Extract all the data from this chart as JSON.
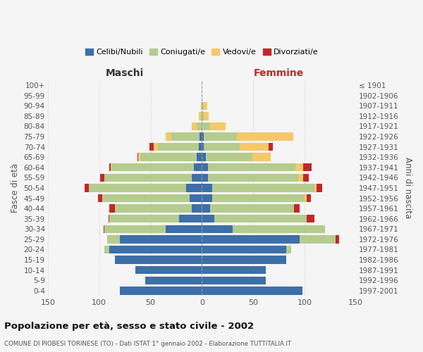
{
  "age_groups": [
    "0-4",
    "5-9",
    "10-14",
    "15-19",
    "20-24",
    "25-29",
    "30-34",
    "35-39",
    "40-44",
    "45-49",
    "50-54",
    "55-59",
    "60-64",
    "65-69",
    "70-74",
    "75-79",
    "80-84",
    "85-89",
    "90-94",
    "95-99",
    "100+"
  ],
  "birth_years": [
    "1997-2001",
    "1992-1996",
    "1987-1991",
    "1982-1986",
    "1977-1981",
    "1972-1976",
    "1967-1971",
    "1962-1966",
    "1957-1961",
    "1952-1956",
    "1947-1951",
    "1942-1946",
    "1937-1941",
    "1932-1936",
    "1927-1931",
    "1922-1926",
    "1917-1921",
    "1912-1916",
    "1907-1911",
    "1902-1906",
    "≤ 1901"
  ],
  "colors": {
    "celibi": "#3d6fa8",
    "coniugati": "#b5cc8e",
    "vedovi": "#f5c96a",
    "divorziati": "#c0282a"
  },
  "maschi": {
    "celibi": [
      80,
      55,
      65,
      85,
      90,
      80,
      35,
      22,
      10,
      12,
      15,
      10,
      8,
      5,
      3,
      2,
      0,
      0,
      0,
      0,
      0
    ],
    "coniugati": [
      0,
      0,
      0,
      0,
      5,
      12,
      60,
      68,
      75,
      85,
      95,
      85,
      80,
      55,
      40,
      28,
      5,
      1,
      0,
      0,
      0
    ],
    "vedovi": [
      0,
      0,
      0,
      0,
      0,
      0,
      0,
      0,
      0,
      0,
      0,
      0,
      1,
      2,
      4,
      5,
      5,
      2,
      1,
      0,
      0
    ],
    "divorziati": [
      0,
      0,
      0,
      0,
      0,
      0,
      1,
      1,
      5,
      4,
      4,
      4,
      1,
      1,
      4,
      0,
      0,
      0,
      0,
      0,
      0
    ]
  },
  "femmine": {
    "celibi": [
      98,
      62,
      62,
      82,
      82,
      95,
      30,
      12,
      8,
      10,
      10,
      6,
      6,
      4,
      2,
      2,
      0,
      0,
      0,
      0,
      0
    ],
    "coniugati": [
      0,
      0,
      0,
      0,
      5,
      35,
      90,
      90,
      82,
      90,
      100,
      88,
      85,
      45,
      35,
      32,
      8,
      2,
      2,
      0,
      0
    ],
    "vedovi": [
      0,
      0,
      0,
      0,
      0,
      0,
      0,
      0,
      0,
      2,
      2,
      5,
      8,
      18,
      28,
      55,
      15,
      5,
      3,
      0,
      0
    ],
    "divorziati": [
      0,
      0,
      0,
      0,
      0,
      4,
      0,
      8,
      5,
      4,
      5,
      5,
      8,
      0,
      4,
      0,
      0,
      0,
      0,
      0,
      0
    ]
  },
  "xlim": 150,
  "title": "Popolazione per età, sesso e stato civile - 2002",
  "subtitle": "COMUNE DI PIOBESI TORINESE (TO) - Dati ISTAT 1° gennaio 2002 - Elaborazione TUTTITALIA.IT",
  "xlabel_left": "Maschi",
  "xlabel_right": "Femmine",
  "ylabel": "Fasce di età",
  "ylabel_right": "Anni di nascita",
  "legend_labels": [
    "Celibi/Nubili",
    "Coniugati/e",
    "Vedovi/e",
    "Divorziati/e"
  ],
  "bg_color": "#f5f5f5",
  "grid_color": "#cccccc"
}
